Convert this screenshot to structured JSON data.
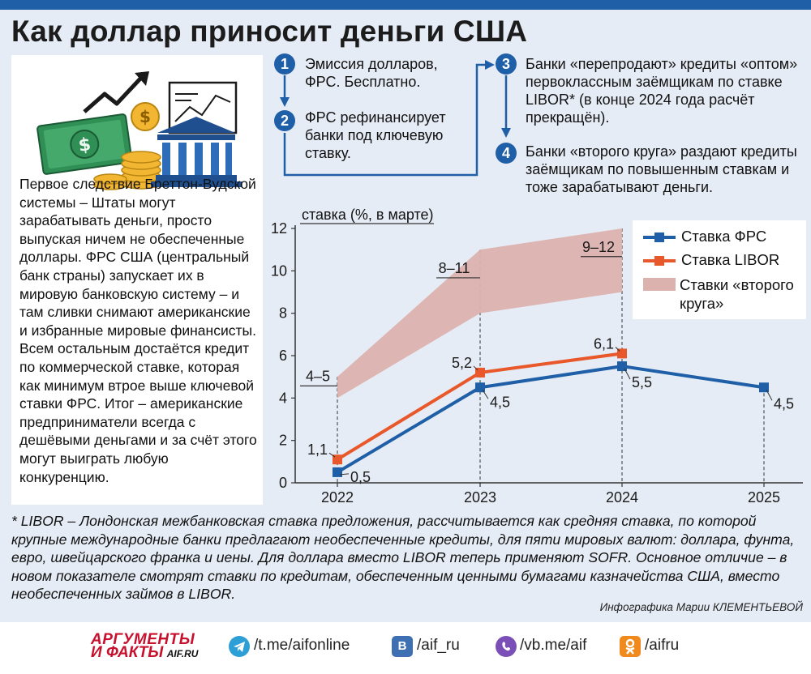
{
  "title": "Как доллар приносит деньги США",
  "left_text": "Первое следствие Бреттон-Вудской системы – Штаты могут зарабатывать деньги, просто выпуская ничем не обеспеченные доллары. ФРС США (центральный банк страны) запускает их в мировую банковскую систему – и там сливки снимают американские и избранные мировые финансисты. Всем остальным достаётся кредит по коммерческой ставке, которая как минимум втрое выше ключевой ставки ФРС. Итог – американские предприниматели всегда с дешёвыми деньгами и за счёт этого могут выиграть любую конкуренцию.",
  "steps": [
    {
      "num": "1",
      "text": "Эмиссия долларов, ФРС. Бесплатно."
    },
    {
      "num": "2",
      "text": "ФРС рефинансирует банки под ключевую ставку."
    },
    {
      "num": "3",
      "text": "Банки «перепродают» кредиты «оптом» первоклассным заёмщикам по ставке LIBOR* (в конце 2024 года расчёт прекращён)."
    },
    {
      "num": "4",
      "text": "Банки «второго круга» раздают кредиты заёмщикам по повышенным ставкам и тоже зарабатывают деньги."
    }
  ],
  "chart_data": {
    "type": "line",
    "ylabel": "ставка (%, в марте)",
    "ylim": [
      0,
      12
    ],
    "yticks": [
      "0",
      "2",
      "4",
      "6",
      "8",
      "10",
      "12"
    ],
    "x": [
      "2022",
      "2023",
      "2024",
      "2025"
    ],
    "series": [
      {
        "name": "Ставка ФРС",
        "color": "#1f5fa8",
        "values": [
          0.5,
          4.5,
          5.5,
          4.5
        ],
        "labels": [
          "0,5",
          "4,5",
          "5,5",
          "4,5"
        ]
      },
      {
        "name": "Ставка LIBOR",
        "color": "#e8582a",
        "values": [
          1.1,
          5.2,
          6.1,
          null
        ],
        "labels": [
          "1,1",
          "5,2",
          "6,1",
          ""
        ]
      }
    ],
    "band": {
      "name": "Ставки «второго круга»",
      "color": "#dcb2ae",
      "low": [
        4,
        8,
        9
      ],
      "high": [
        5,
        11,
        12
      ],
      "labels": [
        "4–5",
        "8–11",
        "9–12"
      ]
    },
    "legend": "top-right"
  },
  "footnote": "* LIBOR – Лондонская межбанковская ставка предложения, рассчитывается как средняя ставка, по которой крупные международные банки предлагают необеспеченные кредиты, для пяти мировых валют: доллара, фунта, евро, швейцарского франка и иены. Для доллара вместо LIBOR теперь применяют SOFR. Основное отличие – в новом показателе смотрят ставки по кредитам, обеспеченным ценными бумагами казначейства США, вместо необеспеченных займов в LIBOR.",
  "credit": "Инфографика Марии КЛЕМЕНТЬЕВОЙ",
  "logo": {
    "line1": "АРГУМЕНТЫ",
    "line2": "И ФАКТЫ",
    "site": "AIF.RU"
  },
  "social": [
    {
      "icon": "telegram-icon",
      "text": "/t.me/aifonline",
      "color": "#2c9fd6"
    },
    {
      "icon": "vk-icon",
      "text": "/aif_ru",
      "color": "#3e6fb3"
    },
    {
      "icon": "viber-icon",
      "text": "/vb.me/aif",
      "color": "#7a4fb8"
    },
    {
      "icon": "ok-icon",
      "text": "/aifru",
      "color": "#f08a1c"
    }
  ]
}
